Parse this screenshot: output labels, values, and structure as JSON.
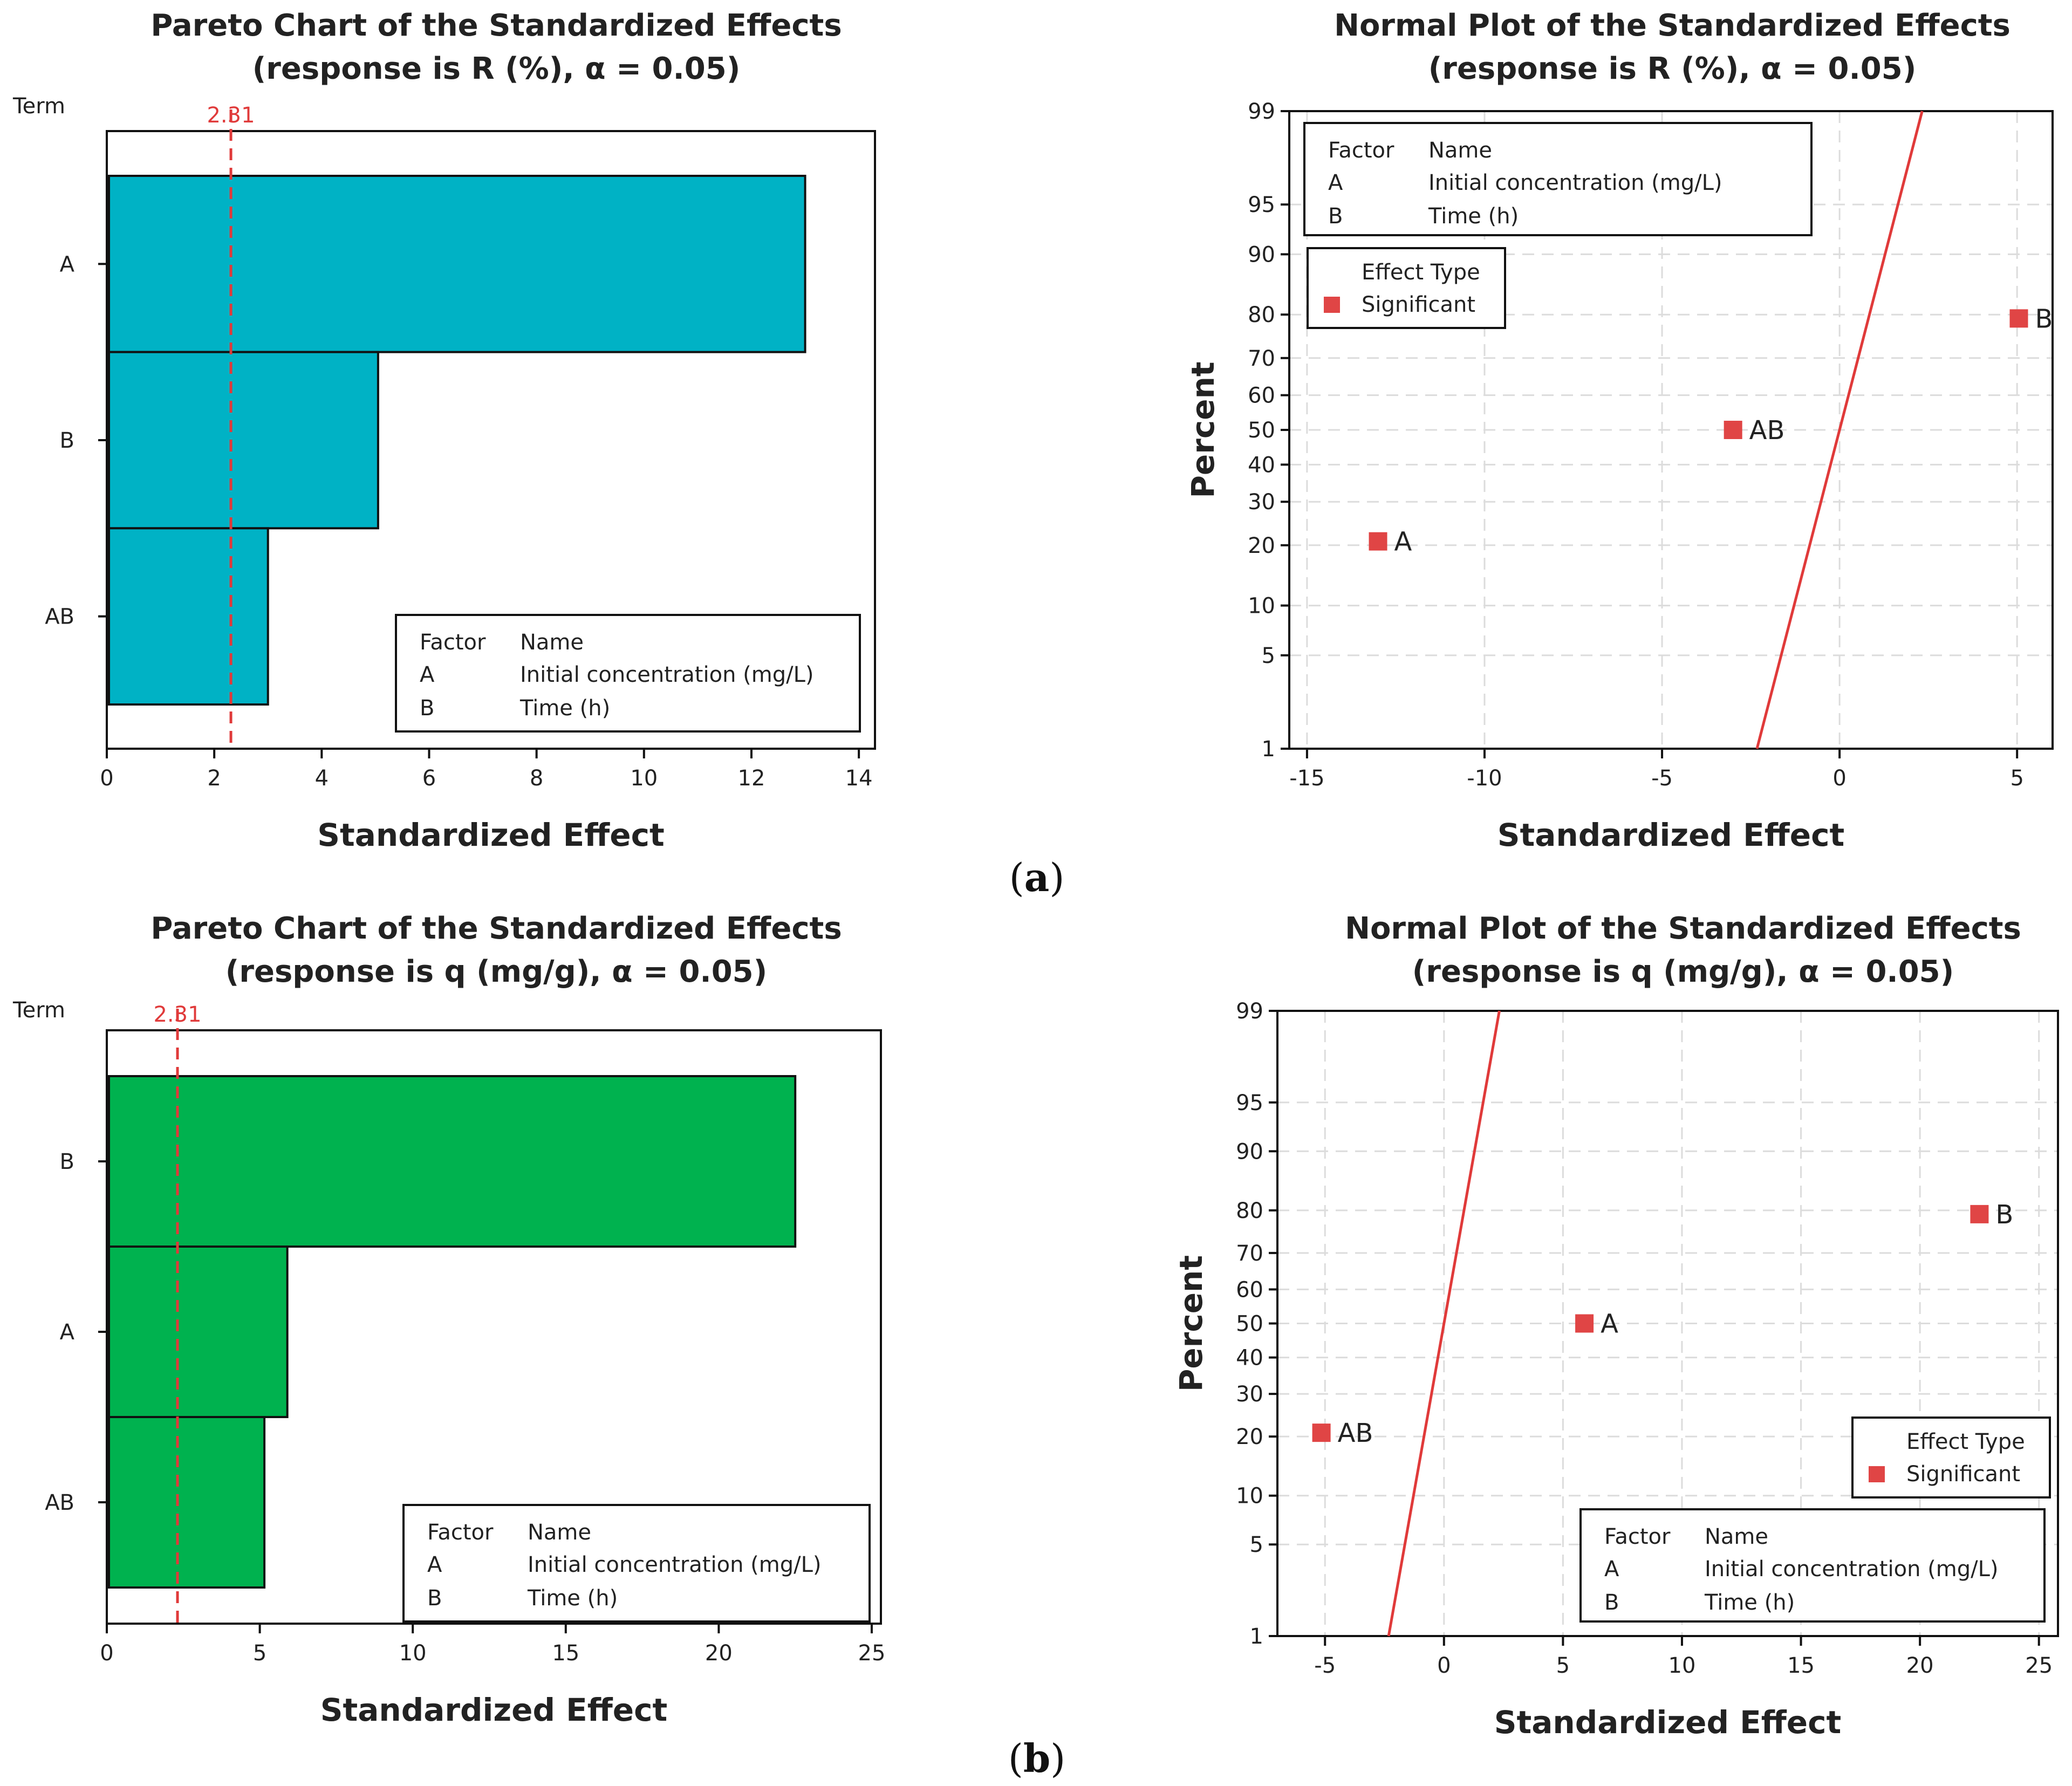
{
  "panels": {
    "a": {
      "label_open": "(",
      "label_letter": "a",
      "label_close": ")"
    },
    "b": {
      "label_open": "(",
      "label_letter": "b",
      "label_close": ")"
    }
  },
  "legend_common": {
    "factor_header": "Factor",
    "name_header": "Name",
    "rows": [
      {
        "factor": "A",
        "name": "Initial concentration (mg/L)"
      },
      {
        "factor": "B",
        "name": "Time (h)"
      }
    ],
    "effect_type_title": "Effect Type",
    "significant_label": "Significant"
  },
  "colors": {
    "pareto_a_bar": "#00b2c5",
    "pareto_b_bar": "#00b24f",
    "critical_line": "#e03a3a",
    "normal_line": "#e03a3a",
    "point": "#e04545",
    "grid": "#dcdcdc",
    "axis": "#111111"
  },
  "chart_data": [
    {
      "id": "pareto-a",
      "type": "bar",
      "orientation": "horizontal",
      "title": "Pareto Chart of the Standardized Effects",
      "subtitle": "(response is R (%), α = 0.05)",
      "ylabel": "Term",
      "xlabel": "Standardized Effect",
      "categories": [
        "A",
        "B",
        "AB"
      ],
      "values": [
        13.0,
        5.05,
        3.0
      ],
      "xlim": [
        0,
        14.3
      ],
      "xticks": [
        0,
        2,
        4,
        6,
        8,
        10,
        12,
        14
      ],
      "critical_value": 2.31,
      "critical_label": "2.31",
      "legend_position": "bottom-right"
    },
    {
      "id": "normal-a",
      "type": "scatter",
      "title": "Normal Plot of the Standardized Effects",
      "subtitle": "(response is R (%), α = 0.05)",
      "xlabel": "Standardized Effect",
      "ylabel": "Percent",
      "xlim": [
        -15.5,
        6.0
      ],
      "xticks": [
        -15,
        -10,
        -5,
        0,
        5
      ],
      "xtick_labels": [
        "-15",
        "-10",
        "-5",
        "0",
        "5"
      ],
      "ylim_percent": [
        1,
        99
      ],
      "yticks": [
        1,
        5,
        10,
        20,
        30,
        40,
        50,
        60,
        70,
        80,
        90,
        95,
        99
      ],
      "points": [
        {
          "label": "A",
          "x": -13.0,
          "percent": 20.8
        },
        {
          "label": "AB",
          "x": -3.0,
          "percent": 50
        },
        {
          "label": "B",
          "x": 5.05,
          "percent": 79.2
        }
      ],
      "reference_line": {
        "mean": 0,
        "sd": 1.0
      },
      "legend_position": "top-left"
    },
    {
      "id": "pareto-b",
      "type": "bar",
      "orientation": "horizontal",
      "title": "Pareto Chart of the Standardized Effects",
      "subtitle": "(response is q (mg/g), α = 0.05)",
      "ylabel": "Term",
      "xlabel": "Standardized Effect",
      "categories": [
        "B",
        "A",
        "AB"
      ],
      "values": [
        22.5,
        5.9,
        5.15
      ],
      "xlim": [
        0,
        25.3
      ],
      "xticks": [
        0,
        5,
        10,
        15,
        20,
        25
      ],
      "critical_value": 2.31,
      "critical_label": "2.31",
      "legend_position": "bottom-right"
    },
    {
      "id": "normal-b",
      "type": "scatter",
      "title": "Normal Plot of the Standardized Effects",
      "subtitle": "(response is q (mg/g), α = 0.05)",
      "xlabel": "Standardized Effect",
      "ylabel": "Percent",
      "xlim": [
        -7.0,
        25.8
      ],
      "xticks": [
        -5,
        0,
        5,
        10,
        15,
        20,
        25
      ],
      "xtick_labels": [
        "-5",
        "0",
        "5",
        "10",
        "15",
        "20",
        "25"
      ],
      "ylim_percent": [
        1,
        99
      ],
      "yticks": [
        1,
        5,
        10,
        20,
        30,
        40,
        50,
        60,
        70,
        80,
        90,
        95,
        99
      ],
      "points": [
        {
          "label": "AB",
          "x": -5.15,
          "percent": 20.8
        },
        {
          "label": "A",
          "x": 5.9,
          "percent": 50
        },
        {
          "label": "B",
          "x": 22.5,
          "percent": 79.2
        }
      ],
      "reference_line": {
        "mean": 0,
        "sd": 1.0
      },
      "legend_position": "bottom-right"
    }
  ]
}
